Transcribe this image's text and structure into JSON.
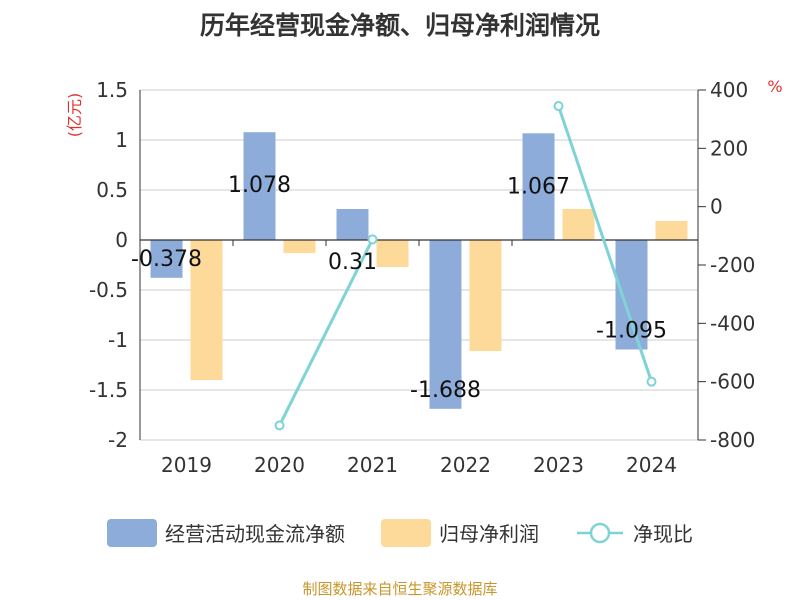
{
  "title": "历年经营现金净额、归母净利润情况",
  "source": "制图数据来自恒生聚源数据库",
  "left_unit": "(亿元)",
  "right_unit": "%",
  "colors": {
    "cash_flow": "#8eacd9",
    "net_profit": "#fdd99a",
    "ratio": "#7fd3d6",
    "unit_red": "#e0312f",
    "grid": "#cccccc",
    "axis": "#333333"
  },
  "chart_data": {
    "type": "bar",
    "categories": [
      "2019",
      "2020",
      "2021",
      "2022",
      "2023",
      "2024"
    ],
    "series": [
      {
        "name": "经营活动现金流净额",
        "type": "bar",
        "axis": "left",
        "values": [
          -0.378,
          1.078,
          0.31,
          -1.688,
          1.067,
          -1.095
        ],
        "labels": [
          "-0.378",
          "1.078",
          "0.31",
          "-1.688",
          "1.067",
          "-1.095"
        ]
      },
      {
        "name": "归母净利润",
        "type": "bar",
        "axis": "left",
        "values": [
          -1.4,
          -0.13,
          -0.27,
          -1.11,
          0.31,
          0.19
        ]
      },
      {
        "name": "净现比",
        "type": "line",
        "axis": "right",
        "values": [
          null,
          -750,
          -112,
          null,
          345,
          -600
        ]
      }
    ],
    "y_left": {
      "min": -2,
      "max": 1.5,
      "ticks": [
        "1.5",
        "1",
        "0.5",
        "0",
        "-0.5",
        "-1",
        "-1.5",
        "-2"
      ]
    },
    "y_right": {
      "min": -800,
      "max": 400,
      "ticks": [
        "400",
        "200",
        "0",
        "-200",
        "-400",
        "-600",
        "-800"
      ]
    },
    "grid": true,
    "legend_position": "bottom"
  }
}
